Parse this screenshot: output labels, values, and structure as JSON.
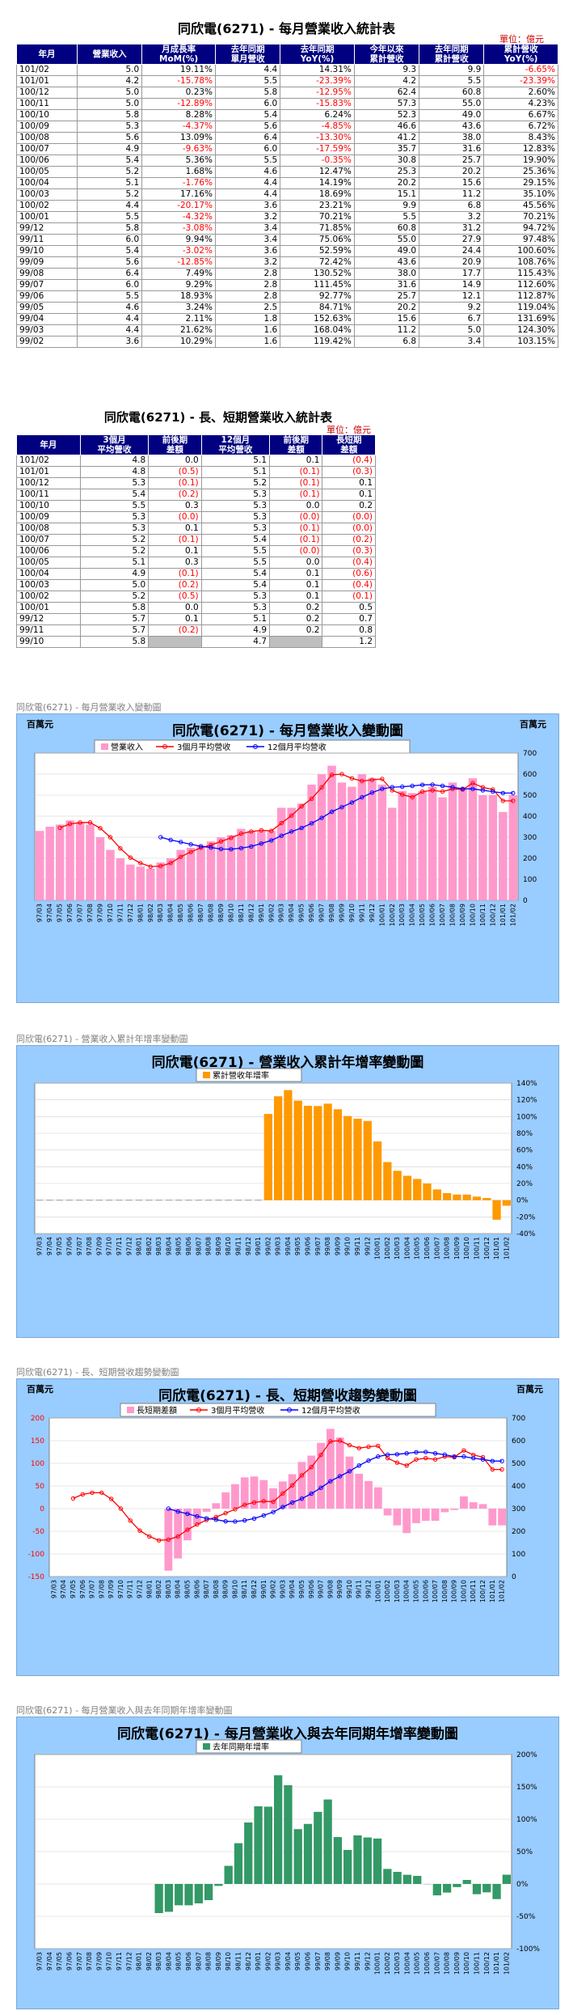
{
  "table1": {
    "title": "同欣電(6271) - 每月營業收入統計表",
    "unit": "單位：億元",
    "headers": [
      "年月",
      "營業收入",
      "月成長率\nMoM(%)",
      "去年同期\n單月營收",
      "去年同期\nYoY(%)",
      "今年以來\n累計營收",
      "去年同期\n累計營收",
      "累計營收\nYoY(%)"
    ],
    "rows": [
      [
        "101/02",
        "5.0",
        "19.11%",
        "4.4",
        "14.31%",
        "9.3",
        "9.9",
        "-6.65%"
      ],
      [
        "101/01",
        "4.2",
        "-15.78%",
        "5.5",
        "-23.39%",
        "4.2",
        "5.5",
        "-23.39%"
      ],
      [
        "100/12",
        "5.0",
        "0.23%",
        "5.8",
        "-12.95%",
        "62.4",
        "60.8",
        "2.60%"
      ],
      [
        "100/11",
        "5.0",
        "-12.89%",
        "6.0",
        "-15.83%",
        "57.3",
        "55.0",
        "4.23%"
      ],
      [
        "100/10",
        "5.8",
        "8.28%",
        "5.4",
        "6.24%",
        "52.3",
        "49.0",
        "6.67%"
      ],
      [
        "100/09",
        "5.3",
        "-4.37%",
        "5.6",
        "-4.85%",
        "46.6",
        "43.6",
        "6.72%"
      ],
      [
        "100/08",
        "5.6",
        "13.09%",
        "6.4",
        "-13.30%",
        "41.2",
        "38.0",
        "8.43%"
      ],
      [
        "100/07",
        "4.9",
        "-9.63%",
        "6.0",
        "-17.59%",
        "35.7",
        "31.6",
        "12.83%"
      ],
      [
        "100/06",
        "5.4",
        "5.36%",
        "5.5",
        "-0.35%",
        "30.8",
        "25.7",
        "19.90%"
      ],
      [
        "100/05",
        "5.2",
        "1.68%",
        "4.6",
        "12.47%",
        "25.3",
        "20.2",
        "25.36%"
      ],
      [
        "100/04",
        "5.1",
        "-1.76%",
        "4.4",
        "14.19%",
        "20.2",
        "15.6",
        "29.15%"
      ],
      [
        "100/03",
        "5.2",
        "17.16%",
        "4.4",
        "18.69%",
        "15.1",
        "11.2",
        "35.10%"
      ],
      [
        "100/02",
        "4.4",
        "-20.17%",
        "3.6",
        "23.21%",
        "9.9",
        "6.8",
        "45.56%"
      ],
      [
        "100/01",
        "5.5",
        "-4.32%",
        "3.2",
        "70.21%",
        "5.5",
        "3.2",
        "70.21%"
      ],
      [
        "99/12",
        "5.8",
        "-3.08%",
        "3.4",
        "71.85%",
        "60.8",
        "31.2",
        "94.72%"
      ],
      [
        "99/11",
        "6.0",
        "9.94%",
        "3.4",
        "75.06%",
        "55.0",
        "27.9",
        "97.48%"
      ],
      [
        "99/10",
        "5.4",
        "-3.02%",
        "3.6",
        "52.59%",
        "49.0",
        "24.4",
        "100.60%"
      ],
      [
        "99/09",
        "5.6",
        "-12.85%",
        "3.2",
        "72.42%",
        "43.6",
        "20.9",
        "108.76%"
      ],
      [
        "99/08",
        "6.4",
        "7.49%",
        "2.8",
        "130.52%",
        "38.0",
        "17.7",
        "115.43%"
      ],
      [
        "99/07",
        "6.0",
        "9.29%",
        "2.8",
        "111.45%",
        "31.6",
        "14.9",
        "112.60%"
      ],
      [
        "99/06",
        "5.5",
        "18.93%",
        "2.8",
        "92.77%",
        "25.7",
        "12.1",
        "112.87%"
      ],
      [
        "99/05",
        "4.6",
        "3.24%",
        "2.5",
        "84.71%",
        "20.2",
        "9.2",
        "119.04%"
      ],
      [
        "99/04",
        "4.4",
        "2.11%",
        "1.8",
        "152.63%",
        "15.6",
        "6.7",
        "131.69%"
      ],
      [
        "99/03",
        "4.4",
        "21.62%",
        "1.6",
        "168.04%",
        "11.2",
        "5.0",
        "124.30%"
      ],
      [
        "99/02",
        "3.6",
        "10.29%",
        "1.6",
        "119.42%",
        "6.8",
        "3.4",
        "103.15%"
      ]
    ]
  },
  "table2": {
    "title": "同欣電(6271) - 長、短期營業收入統計表",
    "unit": "單位：億元",
    "headers": [
      "年月",
      "3個月\n平均營收",
      "前後期\n差額",
      "12個月\n平均營收",
      "前後期\n差額",
      "長短期\n差額"
    ],
    "rows": [
      [
        "101/02",
        "4.8",
        "0.0",
        "5.1",
        "0.1",
        "(0.4)"
      ],
      [
        "101/01",
        "4.8",
        "(0.5)",
        "5.1",
        "(0.1)",
        "(0.3)"
      ],
      [
        "100/12",
        "5.3",
        "(0.1)",
        "5.2",
        "(0.1)",
        "0.1"
      ],
      [
        "100/11",
        "5.4",
        "(0.2)",
        "5.3",
        "(0.1)",
        "0.1"
      ],
      [
        "100/10",
        "5.5",
        "0.3",
        "5.3",
        "0.0",
        "0.2"
      ],
      [
        "100/09",
        "5.3",
        "(0.0)",
        "5.3",
        "(0.0)",
        "(0.0)"
      ],
      [
        "100/08",
        "5.3",
        "0.1",
        "5.3",
        "(0.1)",
        "(0.0)"
      ],
      [
        "100/07",
        "5.2",
        "(0.1)",
        "5.4",
        "(0.1)",
        "(0.2)"
      ],
      [
        "100/06",
        "5.2",
        "0.1",
        "5.5",
        "(0.0)",
        "(0.3)"
      ],
      [
        "100/05",
        "5.1",
        "0.3",
        "5.5",
        "0.0",
        "(0.4)"
      ],
      [
        "100/04",
        "4.9",
        "(0.1)",
        "5.4",
        "0.1",
        "(0.6)"
      ],
      [
        "100/03",
        "5.0",
        "(0.2)",
        "5.4",
        "0.1",
        "(0.4)"
      ],
      [
        "100/02",
        "5.2",
        "(0.5)",
        "5.3",
        "0.1",
        "(0.1)"
      ],
      [
        "100/01",
        "5.8",
        "0.0",
        "5.3",
        "0.2",
        "0.5"
      ],
      [
        "99/12",
        "5.7",
        "0.1",
        "5.1",
        "0.2",
        "0.7"
      ],
      [
        "99/11",
        "5.7",
        "(0.2)",
        "4.9",
        "0.2",
        "0.8"
      ],
      [
        "99/10",
        "5.8",
        "",
        "4.7",
        "",
        "1.2"
      ]
    ]
  },
  "months": [
    "97/03",
    "97/04",
    "97/05",
    "97/06",
    "97/07",
    "97/08",
    "97/09",
    "97/10",
    "97/11",
    "97/12",
    "98/01",
    "98/02",
    "98/03",
    "98/04",
    "98/05",
    "98/06",
    "98/07",
    "98/08",
    "98/09",
    "98/10",
    "98/11",
    "98/12",
    "99/01",
    "99/02",
    "99/03",
    "99/04",
    "99/05",
    "99/06",
    "99/07",
    "99/08",
    "99/09",
    "99/10",
    "99/11",
    "99/12",
    "100/01",
    "100/02",
    "100/03",
    "100/04",
    "100/05",
    "100/06",
    "100/07",
    "100/08",
    "100/09",
    "100/10",
    "100/11",
    "100/12",
    "101/01",
    "101/02"
  ],
  "chart_data": [
    {
      "type": "bar",
      "caption": "同欣電(6271) - 每月營業收入變動圖",
      "title": "同欣電(6271) - 每月營業收入變動圖",
      "unit_label": "百萬元",
      "legend": [
        "營業收入",
        "3個月平均營收",
        "12個月平均營收"
      ],
      "ylim": [
        0,
        700
      ],
      "yticks": [
        0,
        100,
        200,
        300,
        400,
        500,
        600,
        700
      ],
      "series": [
        {
          "name": "營業收入",
          "kind": "bar",
          "values": [
            330,
            350,
            360,
            380,
            370,
            360,
            300,
            240,
            200,
            170,
            160,
            150,
            180,
            200,
            240,
            250,
            260,
            280,
            300,
            310,
            340,
            330,
            330,
            330,
            440,
            440,
            460,
            550,
            600,
            640,
            560,
            540,
            600,
            580,
            550,
            440,
            520,
            510,
            520,
            540,
            490,
            560,
            530,
            580,
            500,
            500,
            420,
            500
          ]
        },
        {
          "name": "3個月平均營收",
          "kind": "line",
          "values": [
            null,
            null,
            345,
            363,
            370,
            370,
            343,
            300,
            247,
            203,
            177,
            160,
            163,
            177,
            207,
            230,
            250,
            263,
            280,
            297,
            317,
            327,
            333,
            330,
            367,
            403,
            447,
            483,
            537,
            597,
            600,
            580,
            567,
            573,
            577,
            523,
            503,
            490,
            517,
            523,
            517,
            530,
            527,
            557,
            537,
            527,
            473,
            473
          ]
        },
        {
          "name": "12個月平均營收",
          "kind": "line",
          "values": [
            null,
            null,
            null,
            null,
            null,
            null,
            null,
            null,
            null,
            null,
            null,
            null,
            300,
            287,
            277,
            266,
            257,
            251,
            244,
            243,
            248,
            256,
            270,
            285,
            307,
            327,
            344,
            366,
            392,
            421,
            443,
            465,
            490,
            512,
            530,
            538,
            540,
            544,
            549,
            550,
            544,
            538,
            530,
            530,
            523,
            517,
            510,
            510
          ]
        }
      ]
    },
    {
      "type": "bar",
      "caption": "同欣電(6271) - 營業收入累計年增率變動圖",
      "title": "同欣電(6271) - 營業收入累計年增率變動圖",
      "legend": [
        "累計營收年增率"
      ],
      "ylim": [
        -40,
        140
      ],
      "yticks": [
        "-40%",
        "-20%",
        "0%",
        "20%",
        "40%",
        "60%",
        "80%",
        "100%",
        "120%",
        "140%"
      ],
      "values": [
        0,
        0,
        0,
        0,
        0,
        0,
        0,
        0,
        0,
        0,
        0,
        0,
        0,
        0,
        0,
        0,
        0,
        0,
        0,
        0,
        0,
        0,
        0,
        103.15,
        124.3,
        131.69,
        119.04,
        112.87,
        112.6,
        115.43,
        108.76,
        100.6,
        97.48,
        94.72,
        70.21,
        45.56,
        35.1,
        29.15,
        25.36,
        19.9,
        12.83,
        8.43,
        6.72,
        6.67,
        4.23,
        2.6,
        -23.39,
        -6.65
      ]
    },
    {
      "type": "bar",
      "caption": "同欣電(6271) - 長、短期營收趨勢變動圖",
      "title": "同欣電(6271) - 長、短期營收趨勢變動圖",
      "unit_label": "百萬元",
      "legend": [
        "長短期差額",
        "3個月平均營收",
        "12個月平均營收"
      ],
      "ylim_left": [
        -150,
        200
      ],
      "yticks_left": [
        -150,
        -100,
        -50,
        0,
        50,
        100,
        150,
        200
      ],
      "ylim_right": [
        0,
        700
      ],
      "yticks_right": [
        0,
        100,
        200,
        300,
        400,
        500,
        600,
        700
      ],
      "series": [
        {
          "name": "長短期差額",
          "kind": "bar",
          "axis": "left",
          "values": [
            null,
            null,
            null,
            null,
            null,
            null,
            null,
            null,
            null,
            null,
            null,
            null,
            -137,
            -110,
            -70,
            -36,
            -7,
            12,
            36,
            54,
            69,
            71,
            63,
            45,
            60,
            76,
            103,
            117,
            145,
            176,
            157,
            115,
            77,
            61,
            47,
            -15,
            -37,
            -54,
            -32,
            -27,
            -27,
            -8,
            -3,
            27,
            14,
            10,
            -37,
            -37
          ]
        },
        {
          "name": "3個月平均營收",
          "kind": "line",
          "axis": "right",
          "values": [
            null,
            null,
            345,
            363,
            370,
            370,
            343,
            300,
            247,
            203,
            177,
            160,
            163,
            177,
            207,
            230,
            250,
            263,
            280,
            297,
            317,
            327,
            333,
            330,
            367,
            403,
            447,
            483,
            537,
            597,
            600,
            580,
            567,
            573,
            577,
            523,
            503,
            490,
            517,
            523,
            517,
            530,
            527,
            557,
            537,
            527,
            473,
            473
          ]
        },
        {
          "name": "12個月平均營收",
          "kind": "line",
          "axis": "right",
          "values": [
            null,
            null,
            null,
            null,
            null,
            null,
            null,
            null,
            null,
            null,
            null,
            null,
            300,
            287,
            277,
            266,
            257,
            251,
            244,
            243,
            248,
            256,
            270,
            285,
            307,
            327,
            344,
            366,
            392,
            421,
            443,
            465,
            490,
            512,
            530,
            538,
            540,
            544,
            549,
            550,
            544,
            538,
            530,
            530,
            523,
            517,
            510,
            510
          ]
        }
      ]
    },
    {
      "type": "bar",
      "caption": "同欣電(6271) - 每月營業收入與去年同期年增率變動圖",
      "title": "同欣電(6271) - 每月營業收入與去年同期年增率變動圖",
      "legend": [
        "去年同期年增率"
      ],
      "ylim": [
        -100,
        200
      ],
      "yticks": [
        "-100%",
        "-50%",
        "0%",
        "50%",
        "100%",
        "150%",
        "200%"
      ],
      "values": [
        null,
        null,
        null,
        null,
        null,
        null,
        null,
        null,
        null,
        null,
        null,
        null,
        -45,
        -43,
        -33,
        -33,
        -30,
        -25,
        -3,
        28,
        63,
        95,
        120,
        119.42,
        168.04,
        152.63,
        84.71,
        92.77,
        111.45,
        130.52,
        72.42,
        52.59,
        75.06,
        71.85,
        70.21,
        23.21,
        18.69,
        14.19,
        12.47,
        -0.35,
        -17.59,
        -13.3,
        -4.85,
        6.24,
        -15.83,
        -12.95,
        -23.39,
        14.31
      ]
    }
  ]
}
